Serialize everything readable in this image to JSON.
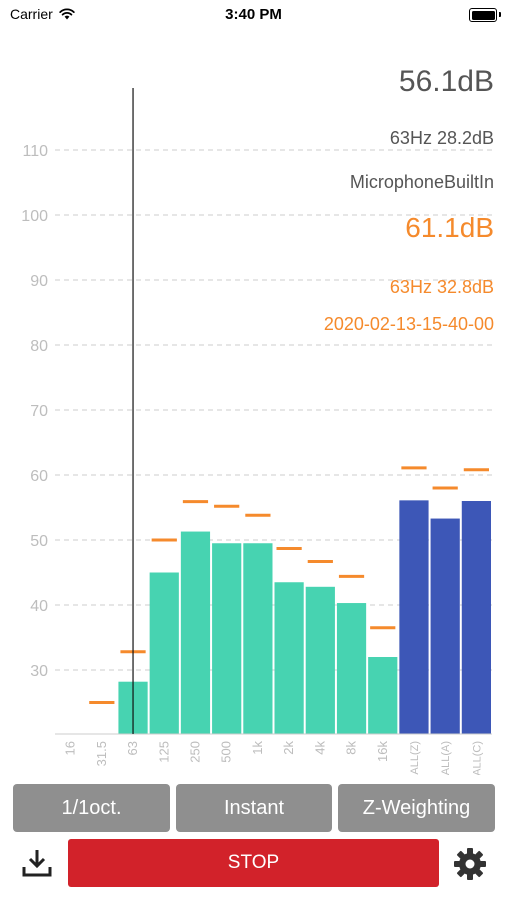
{
  "status_bar": {
    "carrier": "Carrier",
    "time": "3:40 PM"
  },
  "readouts": {
    "overall": "56.1dB",
    "peak_band": "63Hz 28.2dB",
    "input_source": "MicrophoneBuiltIn",
    "max_overall": "61.1dB",
    "max_peak_band": "63Hz 32.8dB",
    "timestamp": "2020-02-13-15-40-00"
  },
  "chart_data": {
    "type": "bar",
    "categories": [
      "16",
      "31.5",
      "63",
      "125",
      "250",
      "500",
      "1k",
      "2k",
      "4k",
      "8k",
      "16k",
      "ALL(Z)",
      "ALL(A)",
      "ALL(C)"
    ],
    "values": [
      null,
      null,
      28.2,
      45.0,
      51.3,
      49.5,
      49.5,
      43.5,
      42.8,
      40.3,
      32.0,
      56.1,
      53.3,
      56.0
    ],
    "max_hold": [
      null,
      25.0,
      32.8,
      50.0,
      55.9,
      55.2,
      53.8,
      48.7,
      46.7,
      44.4,
      36.5,
      61.1,
      58.0,
      60.8
    ],
    "yticks": [
      30,
      40,
      50,
      60,
      70,
      80,
      90,
      100,
      110
    ],
    "ylim": [
      20,
      120
    ],
    "grid": true,
    "cursor_band": "63",
    "colors": {
      "band": "#47d3b1",
      "overall": "#3d57b7",
      "max_hold": "#f58a2c",
      "grid": "#cccccc",
      "tick_label": "#bdbdbd"
    }
  },
  "controls": {
    "bandwidth": "1/1oct.",
    "mode": "Instant",
    "weighting": "Z-Weighting",
    "stop": "STOP"
  },
  "icons": {
    "wifi": "wifi-icon",
    "battery": "battery-icon",
    "download": "download-icon",
    "settings": "gear-icon"
  }
}
